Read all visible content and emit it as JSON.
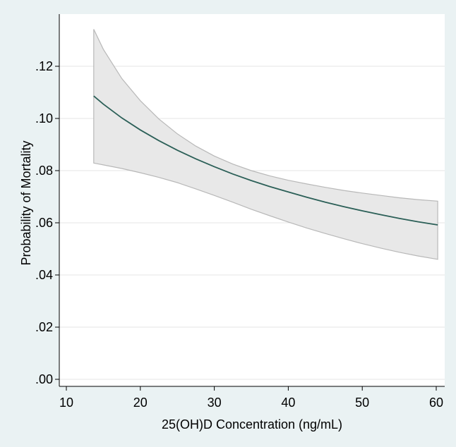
{
  "chart_data": {
    "type": "line",
    "xlabel": "25(OH)D Concentration (ng/mL)",
    "ylabel": "Probability of Mortality",
    "xlim": [
      10,
      60
    ],
    "ylim": [
      0,
      0.12
    ],
    "x_ticks": [
      10,
      20,
      30,
      40,
      50,
      60
    ],
    "x_tick_labels": [
      "10",
      "20",
      "30",
      "40",
      "50",
      "60"
    ],
    "y_ticks": [
      0,
      0.02,
      0.04,
      0.06,
      0.08,
      0.1,
      0.12
    ],
    "y_tick_labels": [
      ".00",
      ".02",
      ".04",
      ".06",
      ".08",
      ".10",
      ".12"
    ],
    "grid": "horizontal",
    "series": [
      {
        "x": [
          13.7,
          15,
          17.5,
          20,
          22.5,
          25,
          27.5,
          30,
          32.5,
          35,
          37.5,
          40,
          42.5,
          45,
          47.5,
          50,
          52.5,
          55,
          57.5,
          60.2
        ],
        "y": [
          0.1086,
          0.1055,
          0.1002,
          0.0956,
          0.0915,
          0.0878,
          0.0845,
          0.0815,
          0.0787,
          0.0762,
          0.0739,
          0.0718,
          0.0698,
          0.0679,
          0.0662,
          0.0646,
          0.0631,
          0.0617,
          0.0604,
          0.0592
        ],
        "upper": [
          0.1342,
          0.1265,
          0.1153,
          0.1068,
          0.0998,
          0.0941,
          0.0894,
          0.0856,
          0.0825,
          0.08,
          0.078,
          0.0763,
          0.0749,
          0.0736,
          0.0724,
          0.0714,
          0.0705,
          0.0696,
          0.0689,
          0.0683
        ],
        "lower": [
          0.0829,
          0.0822,
          0.0808,
          0.0792,
          0.0774,
          0.0754,
          0.073,
          0.0705,
          0.0679,
          0.0652,
          0.0627,
          0.0603,
          0.058,
          0.0559,
          0.0539,
          0.052,
          0.0503,
          0.0487,
          0.0473,
          0.046
        ]
      }
    ],
    "colors": {
      "line": "#2b5f57",
      "band_fill": "#e8e8e8",
      "band_edge": "#b8b8b8",
      "plot_bg": "#ffffff",
      "page_bg": "#eaf2f3",
      "grid": "#e4e4e4"
    }
  }
}
